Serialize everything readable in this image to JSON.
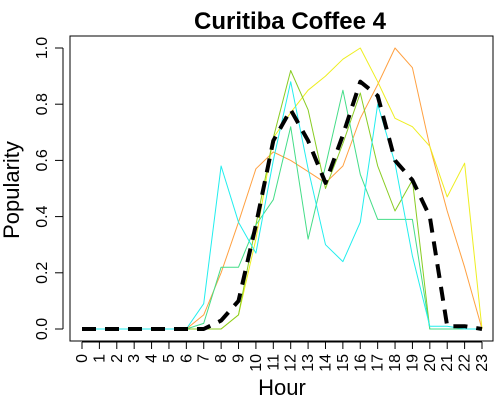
{
  "chart_data": {
    "type": "line",
    "title": "Curitiba Coffee 4",
    "xlabel": "Hour",
    "ylabel": "Popularity",
    "x": [
      0,
      1,
      2,
      3,
      4,
      5,
      6,
      7,
      8,
      9,
      10,
      11,
      12,
      13,
      14,
      15,
      16,
      17,
      18,
      19,
      20,
      21,
      22,
      23
    ],
    "x_tick_labels": [
      "0",
      "1",
      "2",
      "3",
      "4",
      "5",
      "6",
      "7",
      "8",
      "9",
      "10",
      "11",
      "12",
      "13",
      "14",
      "15",
      "16",
      "17",
      "18",
      "19",
      "20",
      "21",
      "22",
      "23"
    ],
    "y_ticks": [
      0.0,
      0.2,
      0.4,
      0.6,
      0.8,
      1.0
    ],
    "y_tick_labels": [
      "0.0",
      "0.2",
      "0.4",
      "0.6",
      "0.8",
      "1.0"
    ],
    "xlim": [
      0,
      23
    ],
    "ylim": [
      0,
      1.0
    ],
    "grid": false,
    "legend": "none",
    "series": [
      {
        "color": "#FFA040",
        "width": 1,
        "dash": "",
        "values": [
          0,
          0,
          0,
          0,
          0,
          0,
          0,
          0.05,
          0.2,
          0.38,
          0.57,
          0.63,
          0.6,
          0.56,
          0.52,
          0.58,
          0.75,
          0.87,
          1.0,
          0.93,
          0.65,
          0.42,
          0.22,
          0.0
        ]
      },
      {
        "color": "#EEEE20",
        "width": 1,
        "dash": "",
        "values": [
          0,
          0,
          0,
          0,
          0,
          0,
          0,
          0,
          0,
          0.05,
          0.32,
          0.68,
          0.77,
          0.85,
          0.9,
          0.96,
          1.0,
          0.88,
          0.75,
          0.72,
          0.65,
          0.47,
          0.59,
          0.0
        ]
      },
      {
        "color": "#88CC22",
        "width": 1,
        "dash": "",
        "values": [
          0,
          0,
          0,
          0,
          0,
          0,
          0,
          0,
          0,
          0.05,
          0.37,
          0.68,
          0.92,
          0.78,
          0.5,
          0.66,
          0.84,
          0.58,
          0.42,
          0.53,
          0.0,
          0.0,
          0.0,
          0.0
        ]
      },
      {
        "color": "#44DD88",
        "width": 1,
        "dash": "",
        "values": [
          0,
          0,
          0,
          0,
          0,
          0,
          0,
          0.02,
          0.22,
          0.22,
          0.37,
          0.46,
          0.72,
          0.32,
          0.58,
          0.85,
          0.55,
          0.39,
          0.39,
          0.39,
          0.0,
          0.0,
          0.0,
          0.0
        ]
      },
      {
        "color": "#22EEEE",
        "width": 1,
        "dash": "",
        "values": [
          0,
          0,
          0,
          0,
          0,
          0,
          0,
          0.09,
          0.58,
          0.38,
          0.27,
          0.6,
          0.88,
          0.57,
          0.3,
          0.24,
          0.38,
          0.8,
          0.59,
          0.26,
          0.01,
          0.01,
          0.0,
          0.0
        ]
      },
      {
        "color": "#000000",
        "width": 4,
        "dash": "14,9",
        "values": [
          0,
          0,
          0,
          0,
          0,
          0,
          0,
          0,
          0.03,
          0.1,
          0.37,
          0.67,
          0.78,
          0.67,
          0.52,
          0.69,
          0.88,
          0.83,
          0.6,
          0.53,
          0.4,
          0.01,
          0.01,
          0.0
        ]
      }
    ]
  }
}
